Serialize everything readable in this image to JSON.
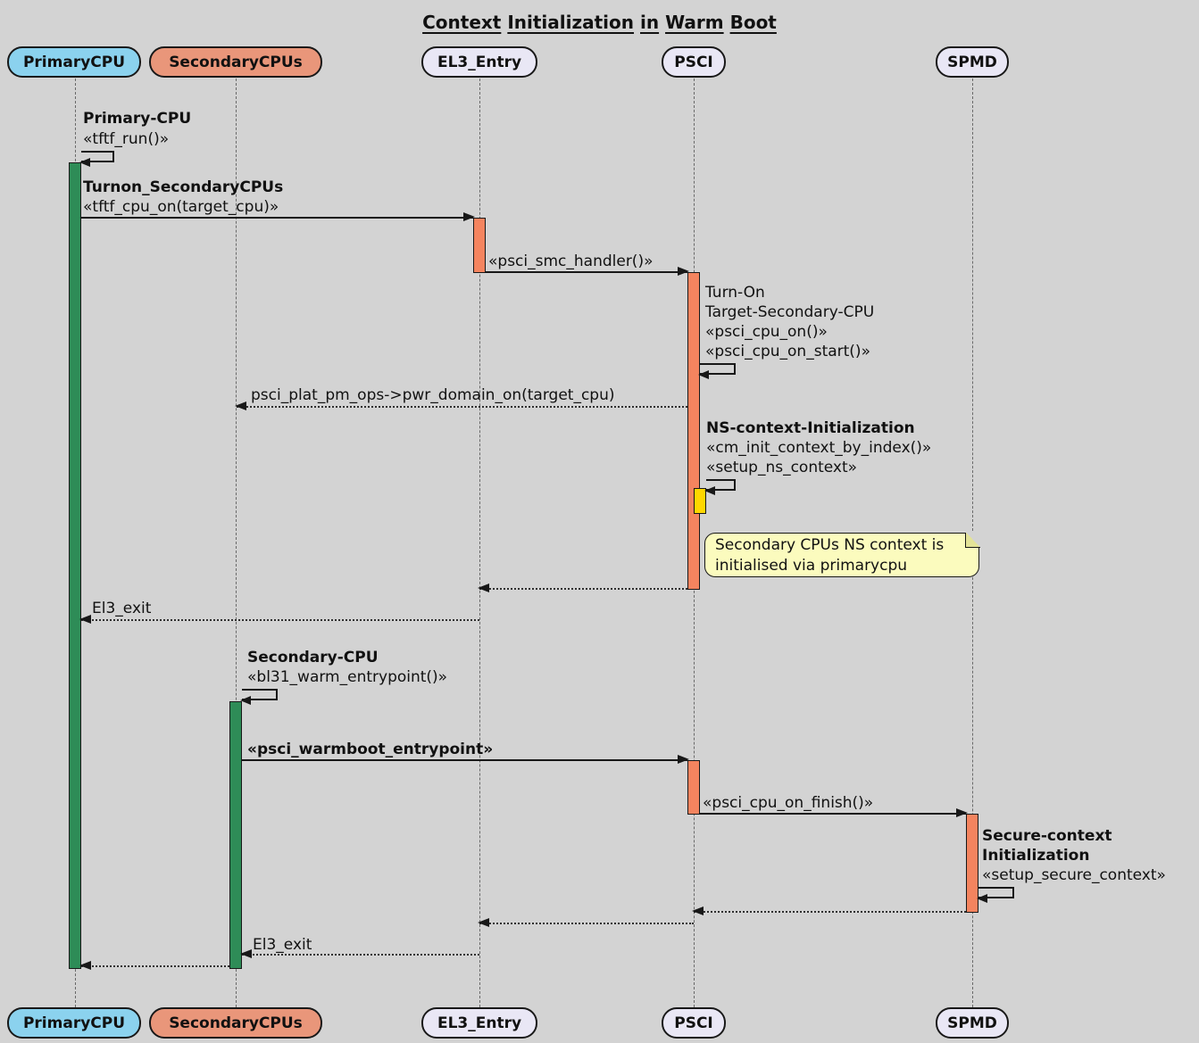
{
  "title": "Context Initialization in Warm Boot",
  "participants": [
    {
      "name": "PrimaryCPU",
      "color": "#8BD2EE"
    },
    {
      "name": "SecondaryCPUs",
      "color": "#E9967A"
    },
    {
      "name": "EL3_Entry",
      "color": "#E9E7F5"
    },
    {
      "name": "PSCI",
      "color": "#E9E7F5"
    },
    {
      "name": "SPMD",
      "color": "#E9E7F5"
    }
  ],
  "colors": {
    "background": "#D3D3D3",
    "activation_green": "#2E8C57",
    "activation_orange": "#F4845F",
    "activation_yellow": "#FFD700",
    "note_background": "#FBFBBE",
    "line": "#181818"
  },
  "messages": {
    "tftf_run": {
      "title": "Primary-CPU",
      "label": "«tftf_run()»"
    },
    "turnon_secondary": {
      "title": "Turnon_SecondaryCPUs",
      "label": "«tftf_cpu_on(target_cpu)»"
    },
    "psci_smc_handler": {
      "label": "«psci_smc_handler()»"
    },
    "turn_on": {
      "line1": "Turn-On",
      "line2": "Target-Secondary-CPU",
      "line3": "«psci_cpu_on()»",
      "line4": "«psci_cpu_on_start()»"
    },
    "pwr_domain_on": {
      "label": "psci_plat_pm_ops->pwr_domain_on(target_cpu)"
    },
    "ns_context_init": {
      "title": "NS-context-Initialization",
      "line1": "«cm_init_context_by_index()»",
      "line2": "«setup_ns_context»"
    },
    "el3_exit_primary": {
      "label": "El3_exit"
    },
    "warm_entrypoint": {
      "title": "Secondary-CPU",
      "label": "«bl31_warm_entrypoint()»"
    },
    "psci_warmboot": {
      "label": "«psci_warmboot_entrypoint»"
    },
    "psci_cpu_on_finish": {
      "label": "«psci_cpu_on_finish()»"
    },
    "secure_context_init": {
      "title_line1": "Secure-context",
      "title_line2": "Initialization",
      "label": "«setup_secure_context»"
    },
    "el3_exit_secondary": {
      "label": "El3_exit"
    }
  },
  "note": {
    "line1": "Secondary CPUs NS context is",
    "line2": "initialised via primarycpu"
  }
}
